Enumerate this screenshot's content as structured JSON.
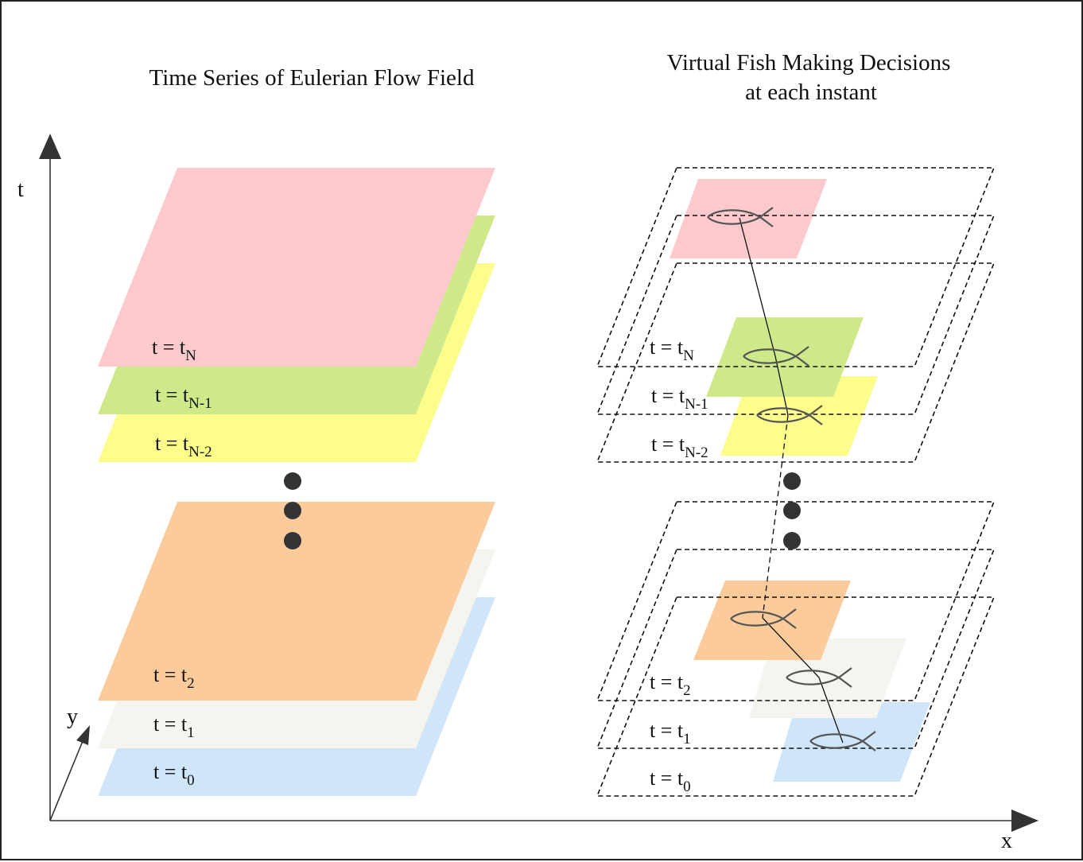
{
  "titles": {
    "left": "Time Series of Eulerian Flow Field",
    "right_line1": "Virtual Fish Making Decisions",
    "right_line2": "at each instant"
  },
  "axes": {
    "t": "t",
    "y": "y",
    "x": "x"
  },
  "colors": {
    "tN": "#fcc9cc",
    "tN1": "#cfe98a",
    "tN2": "#fdfd8c",
    "t2": "#fccb9b",
    "t1": "#f6f4ee",
    "t0": "#cfe5fa",
    "dot": "#333333",
    "outline": "#111111"
  },
  "layers_left": [
    {
      "id": "tN",
      "prefix": "t = t",
      "sub": "N",
      "color": "tN"
    },
    {
      "id": "tN1",
      "prefix": "t = t",
      "sub": "N-1",
      "color": "tN1"
    },
    {
      "id": "tN2",
      "prefix": "t = t",
      "sub": "N-2",
      "color": "tN2"
    },
    {
      "id": "t2",
      "prefix": "t = t",
      "sub": "2",
      "color": "t2"
    },
    {
      "id": "t1",
      "prefix": "t = t",
      "sub": "1",
      "color": "t1"
    },
    {
      "id": "t0",
      "prefix": "t = t",
      "sub": "0",
      "color": "t0"
    }
  ],
  "layers_right": [
    {
      "id": "tN",
      "prefix": "t = t",
      "sub": "N"
    },
    {
      "id": "tN1",
      "prefix": "t = t",
      "sub": "N-1"
    },
    {
      "id": "tN2",
      "prefix": "t = t",
      "sub": "N-2"
    },
    {
      "id": "t2",
      "prefix": "t = t",
      "sub": "2"
    },
    {
      "id": "t1",
      "prefix": "t = t",
      "sub": "1"
    },
    {
      "id": "t0",
      "prefix": "t = t",
      "sub": "0"
    }
  ]
}
